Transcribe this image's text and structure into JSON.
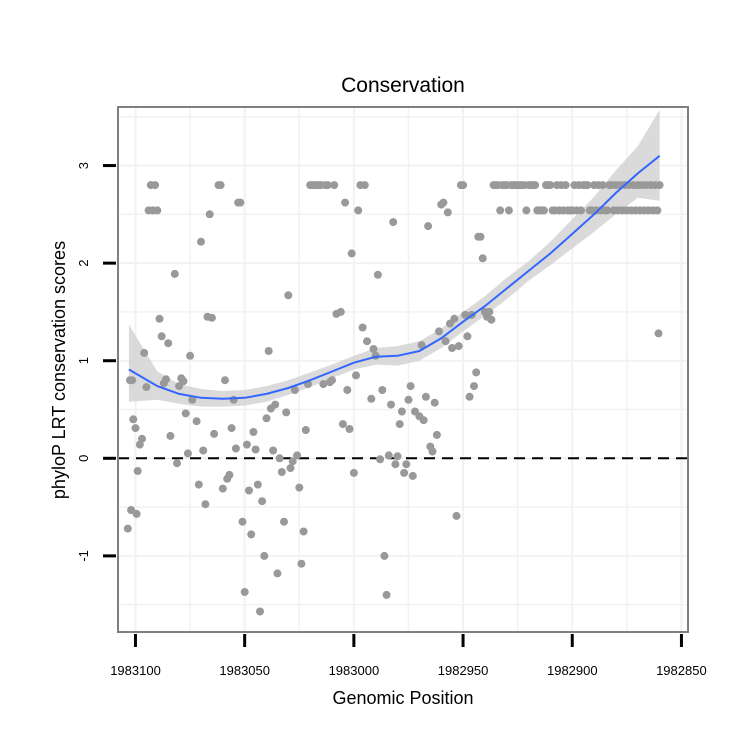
{
  "chart_data": {
    "type": "scatter",
    "title": "Conservation",
    "xlabel": "Genomic Position",
    "ylabel": "phyloP LRT conservation scores",
    "x_reversed": true,
    "xlim": [
      1983108,
      1982847
    ],
    "ylim": [
      -1.78,
      3.6
    ],
    "x_ticks": [
      1983100,
      1983050,
      1983000,
      1982950,
      1982900,
      1982850
    ],
    "x_tick_labels": [
      "1983100",
      "1983050",
      "1983000",
      "1982950",
      "1982900",
      "1982850"
    ],
    "y_ticks": [
      -1,
      0,
      1,
      2,
      3
    ],
    "y_tick_labels": [
      "-1",
      "0",
      "1",
      "2",
      "3"
    ],
    "reference_line": {
      "y": 0,
      "style": "dashed"
    },
    "grid": true,
    "colors": {
      "points": "#999999",
      "smooth": "#3366ff",
      "band": "#d3d3d3",
      "panel_border": "#7f7f7f",
      "grid": "#f2f2f2"
    },
    "series": [
      {
        "name": "points",
        "kind": "scatter",
        "points": [
          [
            1983102.5,
            0.8
          ],
          [
            1983101.5,
            0.8
          ],
          [
            1983103.5,
            -0.72
          ],
          [
            1983102,
            -0.53
          ],
          [
            1983099.5,
            -0.57
          ],
          [
            1983101,
            0.4
          ],
          [
            1983100,
            0.31
          ],
          [
            1983099,
            -0.13
          ],
          [
            1983098,
            0.14
          ],
          [
            1983097,
            0.2
          ],
          [
            1983096,
            1.08
          ],
          [
            1983095,
            0.73
          ],
          [
            1983094,
            2.54
          ],
          [
            1983093,
            2.8
          ],
          [
            1983092,
            2.54
          ],
          [
            1983091,
            2.8
          ],
          [
            1983090,
            2.54
          ],
          [
            1983089,
            1.43
          ],
          [
            1983088,
            1.25
          ],
          [
            1983087,
            0.77
          ],
          [
            1983086,
            0.81
          ],
          [
            1983085,
            1.18
          ],
          [
            1983084,
            0.23
          ],
          [
            1983082,
            1.89
          ],
          [
            1983081,
            -0.05
          ],
          [
            1983080,
            0.74
          ],
          [
            1983079,
            0.82
          ],
          [
            1983078,
            0.79
          ],
          [
            1983077,
            0.46
          ],
          [
            1983076,
            0.05
          ],
          [
            1983075,
            1.05
          ],
          [
            1983074,
            0.6
          ],
          [
            1983072,
            0.38
          ],
          [
            1983071,
            -0.27
          ],
          [
            1983070,
            2.22
          ],
          [
            1983069,
            0.08
          ],
          [
            1983068,
            -0.47
          ],
          [
            1983067,
            1.45
          ],
          [
            1983066,
            2.5
          ],
          [
            1983065,
            1.44
          ],
          [
            1983064,
            0.25
          ],
          [
            1983062,
            2.8
          ],
          [
            1983061,
            2.8
          ],
          [
            1983060,
            -0.31
          ],
          [
            1983059,
            0.8
          ],
          [
            1983058,
            -0.21
          ],
          [
            1983057,
            -0.17
          ],
          [
            1983056,
            0.31
          ],
          [
            1983055,
            0.6
          ],
          [
            1983054,
            0.1
          ],
          [
            1983053,
            2.62
          ],
          [
            1983052,
            2.62
          ],
          [
            1983051,
            -0.65
          ],
          [
            1983050,
            -1.37
          ],
          [
            1983049,
            0.14
          ],
          [
            1983048,
            -0.33
          ],
          [
            1983047,
            -0.78
          ],
          [
            1983046,
            0.27
          ],
          [
            1983045,
            0.09
          ],
          [
            1983044,
            -0.27
          ],
          [
            1983043,
            -1.57
          ],
          [
            1983042,
            -0.44
          ],
          [
            1983041,
            -1.0
          ],
          [
            1983040,
            0.41
          ],
          [
            1983039,
            1.1
          ],
          [
            1983038,
            0.51
          ],
          [
            1983037,
            0.08
          ],
          [
            1983036,
            0.55
          ],
          [
            1983035,
            -1.18
          ],
          [
            1983034,
            0.0
          ],
          [
            1983033,
            -0.14
          ],
          [
            1983032,
            -0.65
          ],
          [
            1983031,
            0.47
          ],
          [
            1983030,
            1.67
          ],
          [
            1983029,
            -0.1
          ],
          [
            1983028,
            -0.03
          ],
          [
            1983027,
            0.7
          ],
          [
            1983026,
            0.03
          ],
          [
            1983025,
            -0.3
          ],
          [
            1983024,
            -1.08
          ],
          [
            1983023,
            -0.75
          ],
          [
            1983022,
            0.29
          ],
          [
            1983021,
            0.76
          ],
          [
            1983020,
            2.8
          ],
          [
            1983019,
            2.8
          ],
          [
            1983018,
            2.8
          ],
          [
            1983017,
            2.8
          ],
          [
            1983016,
            2.8
          ],
          [
            1983015,
            2.8
          ],
          [
            1983014,
            0.76
          ],
          [
            1983013,
            2.8
          ],
          [
            1983012,
            2.8
          ],
          [
            1983011,
            0.78
          ],
          [
            1983010,
            0.8
          ],
          [
            1983009,
            2.8
          ],
          [
            1983008,
            1.48
          ],
          [
            1983006,
            1.5
          ],
          [
            1983005,
            0.35
          ],
          [
            1983004,
            2.62
          ],
          [
            1983003,
            0.7
          ],
          [
            1983002,
            0.3
          ],
          [
            1983001,
            2.1
          ],
          [
            1983000,
            -0.15
          ],
          [
            1982999,
            0.85
          ],
          [
            1982998,
            2.54
          ],
          [
            1982997,
            2.8
          ],
          [
            1982996,
            1.34
          ],
          [
            1982995,
            2.8
          ],
          [
            1982994,
            1.2
          ],
          [
            1982992,
            0.61
          ],
          [
            1982991,
            1.12
          ],
          [
            1982990,
            1.05
          ],
          [
            1982989,
            1.88
          ],
          [
            1982988,
            -0.01
          ],
          [
            1982987,
            0.7
          ],
          [
            1982986,
            -1.0
          ],
          [
            1982985,
            -1.4
          ],
          [
            1982984,
            0.03
          ],
          [
            1982983,
            0.55
          ],
          [
            1982982,
            2.42
          ],
          [
            1982981,
            -0.06
          ],
          [
            1982980,
            0.02
          ],
          [
            1982979,
            0.35
          ],
          [
            1982978,
            0.48
          ],
          [
            1982977,
            -0.15
          ],
          [
            1982976,
            -0.06
          ],
          [
            1982975,
            0.6
          ],
          [
            1982974,
            0.74
          ],
          [
            1982973,
            -0.18
          ],
          [
            1982972,
            0.48
          ],
          [
            1982970,
            0.43
          ],
          [
            1982969,
            1.16
          ],
          [
            1982968,
            0.39
          ],
          [
            1982967,
            0.63
          ],
          [
            1982966,
            2.38
          ],
          [
            1982965,
            0.12
          ],
          [
            1982964,
            0.07
          ],
          [
            1982963,
            0.57
          ],
          [
            1982962,
            0.24
          ],
          [
            1982961,
            1.3
          ],
          [
            1982960,
            2.6
          ],
          [
            1982959,
            2.62
          ],
          [
            1982958,
            1.2
          ],
          [
            1982957,
            2.52
          ],
          [
            1982956,
            1.38
          ],
          [
            1982955,
            1.13
          ],
          [
            1982954,
            1.43
          ],
          [
            1982953,
            -0.59
          ],
          [
            1982952,
            1.15
          ],
          [
            1982951,
            2.8
          ],
          [
            1982950,
            2.8
          ],
          [
            1982949,
            1.47
          ],
          [
            1982948,
            1.25
          ],
          [
            1982947,
            0.63
          ],
          [
            1982946,
            1.47
          ],
          [
            1982945,
            0.74
          ],
          [
            1982944,
            0.88
          ],
          [
            1982943,
            2.27
          ],
          [
            1982942,
            2.27
          ],
          [
            1982941,
            2.05
          ],
          [
            1982940,
            1.5
          ],
          [
            1982939,
            1.45
          ],
          [
            1982938,
            1.5
          ],
          [
            1982937,
            1.42
          ],
          [
            1982936,
            2.8
          ],
          [
            1982935,
            2.8
          ],
          [
            1982934,
            2.8
          ],
          [
            1982933,
            2.54
          ],
          [
            1982932,
            2.8
          ],
          [
            1982931,
            2.8
          ],
          [
            1982930,
            2.8
          ],
          [
            1982929,
            2.54
          ],
          [
            1982928,
            2.8
          ],
          [
            1982927,
            2.8
          ],
          [
            1982926,
            2.8
          ],
          [
            1982925,
            2.8
          ],
          [
            1982924,
            2.8
          ],
          [
            1982923,
            2.8
          ],
          [
            1982922,
            2.8
          ],
          [
            1982921,
            2.54
          ],
          [
            1982920,
            2.8
          ],
          [
            1982919,
            2.8
          ],
          [
            1982918,
            2.8
          ],
          [
            1982917,
            2.8
          ],
          [
            1982916,
            2.54
          ],
          [
            1982915,
            2.54
          ],
          [
            1982914,
            2.54
          ],
          [
            1982913,
            2.54
          ],
          [
            1982912,
            2.8
          ],
          [
            1982911,
            2.8
          ],
          [
            1982910,
            2.8
          ],
          [
            1982909,
            2.54
          ],
          [
            1982908,
            2.54
          ],
          [
            1982907,
            2.8
          ],
          [
            1982906,
            2.54
          ],
          [
            1982905,
            2.8
          ],
          [
            1982904,
            2.54
          ],
          [
            1982903,
            2.8
          ],
          [
            1982902,
            2.54
          ],
          [
            1982901,
            2.54
          ],
          [
            1982900,
            2.54
          ],
          [
            1982899,
            2.8
          ],
          [
            1982898,
            2.54
          ],
          [
            1982897,
            2.8
          ],
          [
            1982896,
            2.54
          ],
          [
            1982895,
            2.8
          ],
          [
            1982894,
            2.8
          ],
          [
            1982893,
            2.8
          ],
          [
            1982892,
            2.54
          ],
          [
            1982891,
            2.54
          ],
          [
            1982890,
            2.8
          ],
          [
            1982889,
            2.54
          ],
          [
            1982888,
            2.8
          ],
          [
            1982887,
            2.54
          ],
          [
            1982886,
            2.8
          ],
          [
            1982885,
            2.54
          ],
          [
            1982884,
            2.54
          ],
          [
            1982883,
            2.8
          ],
          [
            1982882,
            2.8
          ],
          [
            1982881,
            2.54
          ],
          [
            1982880,
            2.8
          ],
          [
            1982879,
            2.54
          ],
          [
            1982878,
            2.8
          ],
          [
            1982877,
            2.54
          ],
          [
            1982876,
            2.8
          ],
          [
            1982875,
            2.54
          ],
          [
            1982874,
            2.8
          ],
          [
            1982873,
            2.54
          ],
          [
            1982872,
            2.8
          ],
          [
            1982871,
            2.54
          ],
          [
            1982870,
            2.8
          ],
          [
            1982869,
            2.54
          ],
          [
            1982868,
            2.8
          ],
          [
            1982867,
            2.54
          ],
          [
            1982866,
            2.8
          ],
          [
            1982865,
            2.54
          ],
          [
            1982864,
            2.8
          ],
          [
            1982863,
            2.54
          ],
          [
            1982862,
            2.8
          ],
          [
            1982861,
            2.54
          ],
          [
            1982860,
            2.8
          ],
          [
            1982860.5,
            1.28
          ]
        ]
      },
      {
        "name": "loess fit",
        "kind": "line",
        "x": [
          1983103,
          1983090,
          1983080,
          1983070,
          1983060,
          1983050,
          1983040,
          1983030,
          1983020,
          1983010,
          1983000,
          1982990,
          1982980,
          1982970,
          1982960,
          1982950,
          1982940,
          1982930,
          1982920,
          1982910,
          1982900,
          1982890,
          1982880,
          1982870,
          1982860
        ],
        "y": [
          0.91,
          0.74,
          0.66,
          0.62,
          0.61,
          0.62,
          0.66,
          0.72,
          0.8,
          0.89,
          0.98,
          1.04,
          1.05,
          1.1,
          1.23,
          1.4,
          1.56,
          1.74,
          1.92,
          2.1,
          2.3,
          2.5,
          2.72,
          2.92,
          3.1
        ],
        "band_lower": [
          0.58,
          0.6,
          0.56,
          0.53,
          0.53,
          0.54,
          0.58,
          0.65,
          0.73,
          0.82,
          0.91,
          0.96,
          0.95,
          1.0,
          1.13,
          1.3,
          1.46,
          1.63,
          1.82,
          1.98,
          2.15,
          2.32,
          2.5,
          2.67,
          2.64
        ],
        "band_upper": [
          1.37,
          0.89,
          0.76,
          0.71,
          0.69,
          0.7,
          0.74,
          0.8,
          0.88,
          0.96,
          1.05,
          1.13,
          1.15,
          1.2,
          1.33,
          1.5,
          1.66,
          1.85,
          2.02,
          2.22,
          2.45,
          2.68,
          2.95,
          3.2,
          3.57
        ]
      }
    ]
  }
}
